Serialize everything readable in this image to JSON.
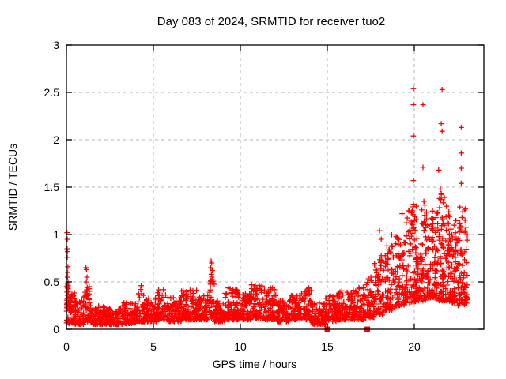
{
  "window": {
    "background": "#ffffff"
  },
  "chart_data": {
    "type": "scatter",
    "title": "Day 083 of 2024, SRMTID for receiver tuo2",
    "xlabel": "GPS time / hours",
    "ylabel": "SRMTID / TECUs",
    "xlim": [
      0,
      24
    ],
    "ylim": [
      0,
      3
    ],
    "xticks": [
      0,
      5,
      10,
      15,
      20
    ],
    "yticks": [
      0,
      0.5,
      1,
      1.5,
      2,
      2.5,
      3
    ],
    "ytick_labels": [
      "0",
      "0.5",
      "1",
      "1.5",
      "2",
      "2.5",
      "3"
    ],
    "xtick_labels": [
      "0",
      "5",
      "10",
      "15",
      "20"
    ],
    "grid": true,
    "grid_color": "#b3b3b3",
    "border_color": "#000000",
    "marker": "plus",
    "marker_color": "#ff0000",
    "legend": "none",
    "render_seed": 2024083,
    "series": [
      {
        "name": "srmtid-points",
        "marker": "plus",
        "density_bands": [
          [
            0.0,
            0.15,
            0.06,
            0.5,
            30
          ],
          [
            0.15,
            0.5,
            0.06,
            0.4,
            45
          ],
          [
            0.5,
            1.0,
            0.05,
            0.3,
            55
          ],
          [
            1.0,
            1.4,
            0.08,
            0.45,
            40
          ],
          [
            1.4,
            2.2,
            0.05,
            0.25,
            85
          ],
          [
            2.2,
            3.2,
            0.05,
            0.22,
            100
          ],
          [
            3.2,
            4.1,
            0.06,
            0.28,
            95
          ],
          [
            4.1,
            4.6,
            0.08,
            0.4,
            50
          ],
          [
            4.6,
            5.2,
            0.08,
            0.33,
            62
          ],
          [
            5.2,
            5.9,
            0.1,
            0.42,
            72
          ],
          [
            5.9,
            6.6,
            0.08,
            0.35,
            72
          ],
          [
            6.6,
            7.5,
            0.1,
            0.42,
            92
          ],
          [
            7.5,
            8.2,
            0.1,
            0.36,
            72
          ],
          [
            8.2,
            8.5,
            0.12,
            0.55,
            34
          ],
          [
            8.5,
            9.1,
            0.08,
            0.3,
            62
          ],
          [
            9.1,
            10.0,
            0.1,
            0.44,
            92
          ],
          [
            10.0,
            10.6,
            0.1,
            0.4,
            62
          ],
          [
            10.6,
            11.3,
            0.12,
            0.47,
            72
          ],
          [
            11.3,
            12.1,
            0.1,
            0.44,
            82
          ],
          [
            12.1,
            12.8,
            0.08,
            0.3,
            72
          ],
          [
            12.8,
            13.4,
            0.1,
            0.36,
            62
          ],
          [
            13.4,
            14.1,
            0.1,
            0.45,
            72
          ],
          [
            14.1,
            14.9,
            0.05,
            0.3,
            82
          ],
          [
            14.9,
            15.6,
            0.08,
            0.36,
            72
          ],
          [
            15.6,
            16.4,
            0.1,
            0.43,
            82
          ],
          [
            16.4,
            17.1,
            0.1,
            0.46,
            72
          ],
          [
            17.1,
            17.7,
            0.12,
            0.58,
            62
          ],
          [
            17.7,
            18.3,
            0.15,
            0.78,
            66
          ],
          [
            18.3,
            18.9,
            0.2,
            1.0,
            70
          ],
          [
            18.9,
            19.5,
            0.25,
            0.98,
            70
          ],
          [
            19.5,
            20.1,
            0.28,
            1.3,
            82
          ],
          [
            20.1,
            20.7,
            0.3,
            1.33,
            86
          ],
          [
            20.7,
            21.3,
            0.33,
            1.25,
            86
          ],
          [
            21.3,
            21.9,
            0.3,
            1.45,
            92
          ],
          [
            21.9,
            22.5,
            0.28,
            1.3,
            92
          ],
          [
            22.5,
            23.05,
            0.25,
            1.3,
            86
          ]
        ],
        "outliers": [
          [
            0.03,
            1.02
          ],
          [
            0.05,
            0.95
          ],
          [
            0.04,
            0.85
          ],
          [
            0.06,
            0.82
          ],
          [
            0.05,
            0.76
          ],
          [
            0.08,
            0.66
          ],
          [
            0.07,
            0.6
          ],
          [
            0.06,
            0.55
          ],
          [
            0.09,
            0.5
          ],
          [
            0.1,
            0.46
          ],
          [
            1.12,
            0.65
          ],
          [
            1.15,
            0.63
          ],
          [
            1.18,
            0.55
          ],
          [
            1.14,
            0.5
          ],
          [
            1.2,
            0.44
          ],
          [
            4.3,
            0.46
          ],
          [
            4.27,
            0.42
          ],
          [
            8.32,
            0.72
          ],
          [
            8.35,
            0.7
          ],
          [
            8.3,
            0.65
          ],
          [
            8.38,
            0.62
          ],
          [
            8.33,
            0.58
          ],
          [
            8.36,
            0.55
          ],
          [
            8.31,
            0.5
          ],
          [
            18.0,
            1.04
          ],
          [
            18.1,
            0.95
          ],
          [
            19.3,
            1.22
          ],
          [
            19.95,
            2.54
          ],
          [
            19.95,
            2.37
          ],
          [
            19.95,
            2.04
          ],
          [
            19.95,
            1.57
          ],
          [
            19.95,
            1.32
          ],
          [
            20.5,
            2.37
          ],
          [
            20.5,
            1.71
          ],
          [
            20.55,
            1.35
          ],
          [
            21.6,
            2.53
          ],
          [
            21.55,
            2.17
          ],
          [
            21.6,
            2.09
          ],
          [
            21.4,
            1.68
          ],
          [
            21.5,
            1.48
          ],
          [
            21.55,
            1.43
          ],
          [
            21.45,
            1.38
          ],
          [
            22.7,
            2.13
          ],
          [
            22.7,
            1.86
          ],
          [
            22.7,
            1.7
          ],
          [
            22.7,
            1.54
          ]
        ]
      },
      {
        "name": "zero-flag-points",
        "marker": "filled-square",
        "points": [
          [
            15.0,
            0
          ],
          [
            17.3,
            0
          ]
        ]
      }
    ]
  }
}
